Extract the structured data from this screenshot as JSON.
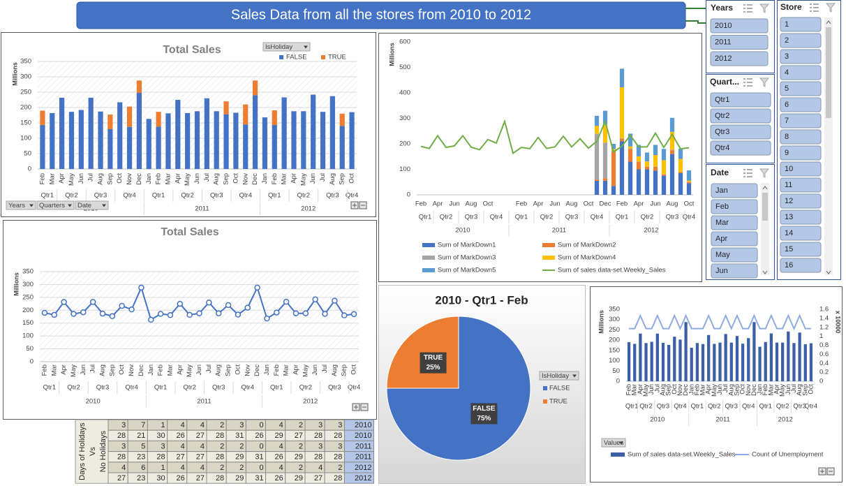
{
  "banner": {
    "title": "Sales Data from  all the stores from 2010 to 2012"
  },
  "chart_data": [
    {
      "type": "bar",
      "stacked": true,
      "title": "Total Sales",
      "y_label": "Millions",
      "grid": true,
      "legend_title": "IsHoliday",
      "field_buttons": [
        "Years",
        "Quarters",
        "Date"
      ],
      "categories": [
        "Feb",
        "Mar",
        "Apr",
        "May",
        "Jun",
        "Jul",
        "Aug",
        "Sep",
        "Oct",
        "Nov",
        "Dec",
        "Jan",
        "Feb",
        "Mar",
        "Apr",
        "May",
        "Jun",
        "Jul",
        "Aug",
        "Sep",
        "Oct",
        "Nov",
        "Dec",
        "Jan",
        "Feb",
        "Mar",
        "Apr",
        "May",
        "Jun",
        "Jul",
        "Aug",
        "Sep",
        "Oct"
      ],
      "quarters": [
        "Qtr1",
        null,
        "Qtr2",
        null,
        null,
        "Qtr3",
        null,
        null,
        "Qtr4",
        null,
        null,
        "Qtr1",
        null,
        null,
        "Qtr2",
        null,
        null,
        "Qtr3",
        null,
        null,
        "Qtr4",
        null,
        null,
        "Qtr1",
        null,
        null,
        "Qtr2",
        null,
        null,
        "Qtr3",
        null,
        null,
        "Qtr4"
      ],
      "years": [
        "2010",
        null,
        null,
        null,
        null,
        null,
        null,
        null,
        null,
        null,
        null,
        "2011",
        null,
        null,
        null,
        null,
        null,
        null,
        null,
        null,
        null,
        null,
        null,
        "2012",
        null,
        null,
        null,
        null,
        null,
        null,
        null,
        null,
        null
      ],
      "series": [
        {
          "name": "FALSE",
          "color": "#4472c4",
          "values": [
            143,
            182,
            232,
            186,
            192,
            232,
            187,
            130,
            217,
            137,
            248,
            163,
            138,
            181,
            225,
            182,
            188,
            230,
            188,
            178,
            183,
            145,
            240,
            168,
            143,
            233,
            188,
            188,
            242,
            186,
            237,
            140,
            185
          ]
        },
        {
          "name": "TRUE",
          "color": "#ed7d31",
          "values": [
            47,
            null,
            null,
            null,
            null,
            null,
            null,
            47,
            null,
            66,
            40,
            null,
            48,
            null,
            null,
            null,
            null,
            null,
            null,
            42,
            null,
            65,
            48,
            null,
            48,
            null,
            null,
            null,
            null,
            null,
            null,
            40,
            null
          ]
        }
      ],
      "ylim": [
        0,
        350
      ],
      "yticks": [
        0,
        50,
        100,
        150,
        200,
        250,
        300,
        350
      ]
    },
    {
      "type": "line",
      "title": "Total Sales",
      "y_label": "Millions",
      "grid": true,
      "markers": true,
      "color": "#4472c4",
      "categories": [
        "Feb",
        "Mar",
        "Apr",
        "May",
        "Jun",
        "Jul",
        "Aug",
        "Sep",
        "Oct",
        "Nov",
        "Dec",
        "Jan",
        "Feb",
        "Mar",
        "Apr",
        "May",
        "Jun",
        "Jul",
        "Aug",
        "Sep",
        "Oct",
        "Nov",
        "Dec",
        "Jan",
        "Feb",
        "Mar",
        "Apr",
        "May",
        "Jun",
        "Jul",
        "Aug",
        "Sep",
        "Oct"
      ],
      "quarters": [
        "Qtr1",
        null,
        "Qtr2",
        null,
        null,
        "Qtr3",
        null,
        null,
        "Qtr4",
        null,
        null,
        "Qtr1",
        null,
        null,
        "Qtr2",
        null,
        null,
        "Qtr3",
        null,
        null,
        "Qtr4",
        null,
        null,
        "Qtr1",
        null,
        null,
        "Qtr2",
        null,
        null,
        "Qtr3",
        null,
        null,
        "Qtr4"
      ],
      "years": [
        "2010",
        null,
        null,
        null,
        null,
        null,
        null,
        null,
        null,
        null,
        null,
        "2011",
        null,
        null,
        null,
        null,
        null,
        null,
        null,
        null,
        null,
        null,
        null,
        "2012",
        null,
        null,
        null,
        null,
        null,
        null,
        null,
        null,
        null
      ],
      "values": [
        190,
        182,
        232,
        186,
        192,
        232,
        187,
        177,
        217,
        203,
        288,
        163,
        186,
        181,
        225,
        182,
        188,
        230,
        188,
        220,
        183,
        210,
        288,
        168,
        191,
        233,
        188,
        188,
        242,
        186,
        237,
        180,
        185
      ],
      "ylim": [
        0,
        350
      ],
      "yticks": [
        0,
        50,
        100,
        150,
        200,
        250,
        300,
        350
      ]
    },
    {
      "type": "combo",
      "stacked": true,
      "y_label": "Millions",
      "categories": [
        "Feb",
        null,
        "Apr",
        null,
        "Jun",
        null,
        "Aug",
        null,
        "Oct",
        null,
        null,
        null,
        "Feb",
        null,
        "Apr",
        null,
        "Jun",
        null,
        "Aug",
        null,
        "Oct",
        null,
        "Dec",
        null,
        "Feb",
        null,
        "Apr",
        null,
        "Jun",
        null,
        "Aug",
        null,
        "Oct"
      ],
      "quarters": [
        "Qtr1",
        null,
        "Qtr2",
        null,
        null,
        "Qtr3",
        null,
        null,
        "Qtr4",
        null,
        null,
        "Qtr1",
        null,
        null,
        "Qtr2",
        null,
        null,
        "Qtr3",
        null,
        null,
        "Qtr4",
        null,
        null,
        "Qtr1",
        null,
        null,
        "Qtr2",
        null,
        null,
        "Qtr3",
        null,
        null,
        "Qtr4"
      ],
      "years": [
        "2010",
        null,
        null,
        null,
        null,
        null,
        null,
        null,
        null,
        null,
        null,
        "2011",
        null,
        null,
        null,
        null,
        null,
        null,
        null,
        null,
        null,
        null,
        null,
        "2012",
        null,
        null,
        null,
        null,
        null,
        null,
        null,
        null,
        null
      ],
      "series": [
        {
          "name": "Sum of MarkDown1",
          "color": "#4472c4",
          "type": "bar",
          "values": [
            null,
            null,
            null,
            null,
            null,
            null,
            null,
            null,
            null,
            null,
            null,
            null,
            null,
            null,
            null,
            null,
            null,
            null,
            null,
            null,
            null,
            55,
            55,
            35,
            210,
            130,
            100,
            100,
            95,
            75,
            160,
            85,
            45
          ]
        },
        {
          "name": "Sum of MarkDown2",
          "color": "#ed7d31",
          "type": "bar",
          "values": [
            null,
            null,
            null,
            null,
            null,
            null,
            null,
            null,
            null,
            null,
            null,
            null,
            null,
            null,
            null,
            null,
            null,
            null,
            null,
            null,
            null,
            5,
            10,
            135,
            10,
            50,
            30,
            10,
            15,
            5,
            15,
            5,
            5
          ]
        },
        {
          "name": "Sum of MarkDown3",
          "color": "#a5a5a5",
          "type": "bar",
          "values": [
            null,
            null,
            null,
            null,
            null,
            null,
            null,
            null,
            null,
            null,
            null,
            null,
            null,
            null,
            null,
            null,
            null,
            null,
            null,
            null,
            null,
            180,
            140,
            5,
            2,
            2,
            1,
            1,
            1,
            1,
            2,
            1,
            1
          ]
        },
        {
          "name": "Sum of MarkDown4",
          "color": "#ffc000",
          "type": "bar",
          "values": [
            null,
            null,
            null,
            null,
            null,
            null,
            null,
            null,
            null,
            null,
            null,
            null,
            null,
            null,
            null,
            null,
            null,
            null,
            null,
            null,
            null,
            30,
            70,
            5,
            200,
            8,
            20,
            20,
            45,
            55,
            70,
            50,
            5
          ]
        },
        {
          "name": "Sum of MarkDown5",
          "color": "#5b9bd5",
          "type": "bar",
          "values": [
            null,
            null,
            null,
            null,
            null,
            null,
            null,
            null,
            null,
            null,
            null,
            null,
            null,
            null,
            null,
            null,
            null,
            null,
            null,
            null,
            null,
            40,
            55,
            20,
            73,
            50,
            45,
            35,
            40,
            44,
            55,
            40,
            40
          ]
        },
        {
          "name": "Sum of sales data-set.Weekly_Sales",
          "color": "#70ad47",
          "type": "line",
          "values": [
            190,
            182,
            232,
            186,
            192,
            232,
            187,
            177,
            217,
            203,
            288,
            163,
            186,
            181,
            225,
            182,
            188,
            230,
            188,
            220,
            183,
            210,
            288,
            168,
            191,
            233,
            188,
            188,
            242,
            186,
            237,
            180,
            185
          ]
        }
      ],
      "ylim": [
        0,
        600
      ],
      "yticks": [
        0,
        100,
        200,
        300,
        400,
        500,
        600
      ]
    },
    {
      "type": "pie",
      "title": "2010 - Qtr1 - Feb",
      "legend_title": "IsHoliday",
      "categories": [
        "FALSE",
        "TRUE"
      ],
      "values": [
        75,
        25
      ],
      "value_labels": [
        "75%",
        "25%"
      ],
      "colors": [
        "#4472c4",
        "#ed7d31"
      ]
    },
    {
      "type": "combo",
      "y_label": "Millions",
      "y2_label": "x 10000",
      "field_buttons": [
        "Values"
      ],
      "categories": [
        "Feb",
        "Mar",
        "Apr",
        "May",
        "Jun",
        "Jul",
        "Aug",
        "Sep",
        "Oct",
        "Nov",
        "Dec",
        "Jan",
        "Feb",
        "Mar",
        "Apr",
        "May",
        "Jun",
        "Jul",
        "Aug",
        "Sep",
        "Oct",
        "Nov",
        "Dec",
        "Jan",
        "Feb",
        "Mar",
        "Apr",
        "May",
        "Jun",
        "Jul",
        "Aug",
        "Sep",
        "Oct"
      ],
      "quarters": [
        "Qtr1",
        null,
        "Qtr2",
        null,
        null,
        "Qtr3",
        null,
        null,
        "Qtr4",
        null,
        null,
        "Qtr1",
        null,
        null,
        "Qtr2",
        null,
        null,
        "Qtr3",
        null,
        null,
        "Qtr4",
        null,
        null,
        "Qtr1",
        null,
        null,
        "Qtr2",
        null,
        null,
        "Qtr3",
        null,
        null,
        "Qtr4"
      ],
      "years": [
        "2010",
        null,
        null,
        null,
        null,
        null,
        null,
        null,
        null,
        null,
        null,
        "2011",
        null,
        null,
        null,
        null,
        null,
        null,
        null,
        null,
        null,
        null,
        null,
        "2012",
        null,
        null,
        null,
        null,
        null,
        null,
        null,
        null,
        null
      ],
      "series": [
        {
          "name": "Sum of sales data-set.Weekly_Sales",
          "color": "#3c5fa8",
          "type": "bar",
          "values": [
            190,
            182,
            232,
            186,
            192,
            232,
            187,
            177,
            217,
            203,
            288,
            163,
            186,
            181,
            225,
            182,
            188,
            230,
            188,
            220,
            183,
            210,
            288,
            168,
            191,
            233,
            188,
            188,
            242,
            186,
            237,
            180,
            185
          ]
        },
        {
          "name": "Count of Unemployment",
          "color": "#8faadc",
          "type": "line",
          "axis": "y2",
          "values": [
            1.17,
            1.17,
            1.46,
            1.17,
            1.17,
            1.46,
            1.17,
            1.17,
            1.46,
            1.17,
            1.46,
            1.17,
            1.17,
            1.17,
            1.46,
            1.17,
            1.17,
            1.46,
            1.17,
            1.46,
            1.17,
            1.17,
            1.46,
            1.17,
            1.17,
            1.46,
            1.17,
            1.17,
            1.46,
            1.17,
            1.46,
            1.17,
            1.17
          ]
        }
      ],
      "ylim": [
        0,
        350
      ],
      "yticks": [
        0,
        50,
        100,
        150,
        200,
        250,
        300,
        350
      ],
      "y2lim": [
        0,
        1.6
      ],
      "y2ticks": [
        0,
        0.2,
        0.4,
        0.6,
        0.8,
        1,
        1.2,
        1.4,
        1.6
      ]
    }
  ],
  "slicers": [
    {
      "title": "Years",
      "items": [
        "2010",
        "2011",
        "2012"
      ]
    },
    {
      "title": "Store",
      "items": [
        "1",
        "2",
        "3",
        "4",
        "5",
        "6",
        "7",
        "8",
        "9",
        "10",
        "11",
        "12",
        "13",
        "14",
        "15",
        "16"
      ]
    },
    {
      "title": "Quart...",
      "items": [
        "Qtr1",
        "Qtr2",
        "Qtr3",
        "Qtr4"
      ]
    },
    {
      "title": "Date",
      "items": [
        "Jan",
        "Feb",
        "Mar",
        "Apr",
        "May",
        "Jun"
      ]
    }
  ],
  "table": {
    "row_header": [
      "Days of Holidays",
      "Vs",
      "No Holidays"
    ],
    "rows": [
      [
        3,
        7,
        1,
        4,
        4,
        2,
        3,
        0,
        4,
        2,
        3,
        3,
        "2010"
      ],
      [
        28,
        21,
        30,
        26,
        27,
        28,
        31,
        26,
        29,
        27,
        28,
        28,
        "2010"
      ],
      [
        3,
        5,
        3,
        4,
        4,
        2,
        2,
        0,
        4,
        2,
        3,
        3,
        "2011"
      ],
      [
        28,
        23,
        28,
        27,
        27,
        28,
        29,
        31,
        26,
        29,
        28,
        28,
        "2011"
      ],
      [
        4,
        6,
        1,
        4,
        4,
        2,
        2,
        0,
        4,
        2,
        4,
        2,
        "2012"
      ],
      [
        27,
        23,
        30,
        26,
        27,
        28,
        29,
        31,
        26,
        29,
        27,
        28,
        "2012"
      ]
    ]
  }
}
